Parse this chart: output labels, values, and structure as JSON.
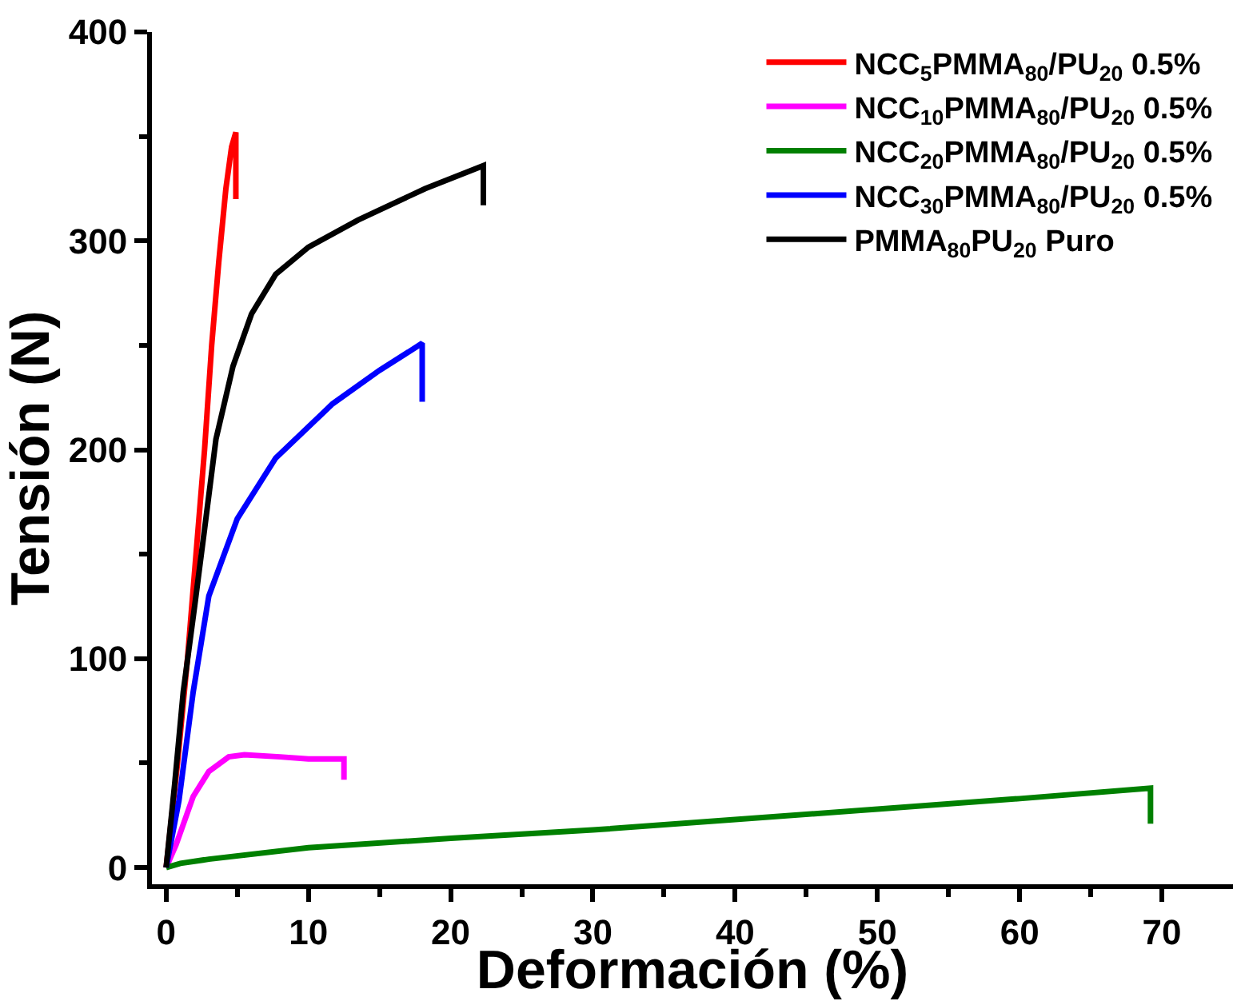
{
  "chart_data": {
    "type": "line",
    "xlabel": "Deformación (%)",
    "ylabel": "Tensión (N)",
    "xlim": [
      -1,
      75
    ],
    "ylim": [
      -8,
      400
    ],
    "xticks": [
      0,
      {
        "value": 5,
        "label": null
      },
      10,
      {
        "value": 15,
        "label": null
      },
      20,
      {
        "value": 25,
        "label": null
      },
      30,
      {
        "value": 35,
        "label": null
      },
      40,
      {
        "value": 45,
        "label": null
      },
      50,
      {
        "value": 55,
        "label": null
      },
      60,
      {
        "value": 65,
        "label": null
      },
      70
    ],
    "yticks": [
      0,
      {
        "value": 50,
        "label": null
      },
      100,
      {
        "value": 150,
        "label": null
      },
      200,
      {
        "value": 250,
        "label": null
      },
      300,
      {
        "value": 350,
        "label": null
      },
      400
    ],
    "legend": "top right",
    "marker": "none",
    "line_style": "solid",
    "series": [
      {
        "name": "NCC$_{5}$PMMA$_{80}$/PU$_{20}$ 0.5%",
        "color": "#ff0000",
        "x": [
          0,
          0.8,
          1.5,
          2.1,
          2.7,
          3.2,
          3.7,
          4.2,
          4.6,
          4.9,
          4.9
        ],
        "values": [
          0,
          50,
          100,
          150,
          200,
          250,
          290,
          325,
          345,
          352,
          320
        ]
      },
      {
        "name": "NCC$_{10}$PMMA$_{80}$/PU$_{20}$ 0.5%",
        "color": "#ff00ff",
        "x": [
          0,
          0.7,
          1.9,
          3,
          4.4,
          5.5,
          8,
          10,
          12.5,
          12.5
        ],
        "values": [
          0,
          11,
          34,
          46,
          53,
          54,
          53,
          52,
          52,
          42
        ]
      },
      {
        "name": "NCC$_{20}$PMMA$_{80}$/PU$_{20}$ 0.5%",
        "color": "#008000",
        "x": [
          0,
          1,
          3,
          10,
          20,
          30,
          40,
          50,
          60,
          69.2,
          69.2
        ],
        "values": [
          0,
          2,
          4,
          9.5,
          14,
          18,
          23,
          28,
          33,
          38,
          21
        ]
      },
      {
        "name": "NCC$_{30}$PMMA$_{80}$/PU$_{20}$ 0.5%",
        "color": "#0000ff",
        "x": [
          0,
          0.9,
          1.9,
          3,
          5,
          7.7,
          11.7,
          15,
          18,
          18
        ],
        "values": [
          0,
          32,
          84,
          130,
          167,
          196,
          222,
          238,
          251,
          223
        ]
      },
      {
        "name": "PMMA$_{80}$PU$_{20}$ Puro",
        "color": "#000000",
        "x": [
          0,
          0.6,
          1.2,
          2,
          2.7,
          3.5,
          4.7,
          6,
          7.7,
          10,
          13.5,
          18.2,
          22.3,
          22.3
        ],
        "values": [
          0,
          40,
          84,
          125,
          162,
          205,
          240,
          265,
          284,
          297,
          310,
          325,
          336,
          317
        ]
      }
    ]
  }
}
